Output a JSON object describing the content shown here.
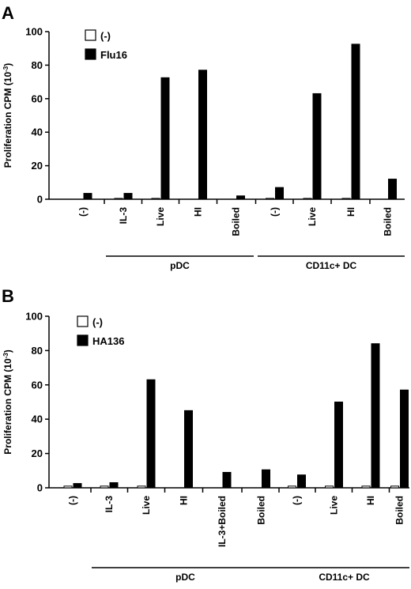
{
  "chart_data": [
    {
      "panel": "A",
      "type": "bar",
      "ylabel": "Proliferation CPM (10",
      "ylabel_sup": "-3",
      "ylabel_close": ")",
      "ylim": [
        0,
        100
      ],
      "yticks": [
        "0",
        "20",
        "40",
        "60",
        "80",
        "100"
      ],
      "categories": [
        "(-)",
        "IL-3",
        "Live",
        "HI",
        "Boiled",
        "(-)",
        "Live",
        "HI",
        "Boiled"
      ],
      "series": [
        {
          "name": "(-)",
          "color": "#ffffff",
          "values": [
            0,
            0.5,
            0.5,
            0,
            0,
            0.5,
            0.5,
            0.5,
            0
          ]
        },
        {
          "name": "Flu16",
          "color": "#000000",
          "values": [
            3.5,
            3.5,
            72.5,
            77,
            2,
            7,
            63,
            92.5,
            12
          ]
        }
      ],
      "groups": [
        {
          "label": "pDC",
          "start": 1,
          "end": 4
        },
        {
          "label": "CD11c+ DC",
          "start": 5,
          "end": 8
        }
      ],
      "legend": "top-left",
      "grid": false
    },
    {
      "panel": "B",
      "type": "bar",
      "ylabel": "Proliferation CPM (10",
      "ylabel_sup": "-3",
      "ylabel_close": ")",
      "ylim": [
        0,
        100
      ],
      "yticks": [
        "0",
        "20",
        "40",
        "60",
        "80",
        "100"
      ],
      "categories": [
        "(-)",
        "IL-3",
        "Live",
        "HI",
        "IL-3+Boiled",
        "Boiled",
        "(-)",
        "Live",
        "HI",
        "Boiled"
      ],
      "series": [
        {
          "name": "(-)",
          "color": "#ffffff",
          "values": [
            1,
            1,
            1,
            0,
            0,
            0,
            1,
            1,
            1,
            1
          ]
        },
        {
          "name": "HA136",
          "color": "#000000",
          "values": [
            2.5,
            3,
            63,
            45,
            9,
            10.5,
            7.5,
            50,
            84,
            57
          ]
        }
      ],
      "groups": [
        {
          "label": "pDC",
          "start": 1,
          "end": 5
        },
        {
          "label": "CD11c+ DC",
          "start": 6,
          "end": 9
        }
      ],
      "legend": "top-left",
      "grid": false
    }
  ]
}
